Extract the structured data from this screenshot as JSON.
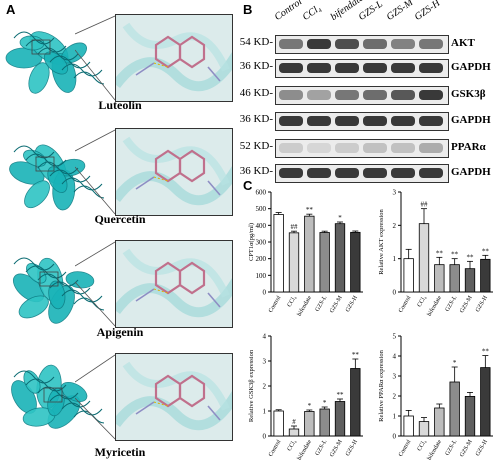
{
  "panels": {
    "a": "A",
    "b": "B",
    "c": "C"
  },
  "molecules": [
    "Luteolin",
    "Quercetin",
    "Apigenin",
    "Myricetin"
  ],
  "blot": {
    "lanes": [
      "Control",
      "CCl₄",
      "bifendate",
      "GZS-L",
      "GZS-M",
      "GZS-H"
    ],
    "rows": [
      {
        "kd": "54 KD-",
        "protein": "AKT",
        "intensity": [
          0.55,
          0.85,
          0.75,
          0.6,
          0.5,
          0.55
        ]
      },
      {
        "kd": "36 KD-",
        "protein": "GAPDH",
        "intensity": [
          0.85,
          0.85,
          0.85,
          0.85,
          0.85,
          0.85
        ]
      },
      {
        "kd": "46 KD-",
        "protein": "GSK3β",
        "intensity": [
          0.45,
          0.35,
          0.55,
          0.6,
          0.7,
          0.85
        ]
      },
      {
        "kd": "36 KD-",
        "protein": "GAPDH",
        "intensity": [
          0.85,
          0.85,
          0.85,
          0.85,
          0.85,
          0.85
        ]
      },
      {
        "kd": "52 KD-",
        "protein": "PPARα",
        "intensity": [
          0.15,
          0.1,
          0.15,
          0.2,
          0.2,
          0.3
        ]
      },
      {
        "kd": "36 KD-",
        "protein": "GAPDH",
        "intensity": [
          0.85,
          0.85,
          0.85,
          0.85,
          0.85,
          0.85
        ]
      }
    ]
  },
  "chart_data": [
    {
      "type": "bar",
      "categories": [
        "Control",
        "CCl₄",
        "bifendate",
        "GZS-L",
        "GZS-M",
        "GZS-H"
      ],
      "values": [
        465,
        355,
        455,
        357,
        410,
        358
      ],
      "errors": [
        12,
        10,
        12,
        8,
        10,
        8
      ],
      "ylabel": "CPT1α(pg/ml)",
      "ylim": [
        0,
        600
      ],
      "yticks": [
        0,
        100,
        200,
        300,
        400,
        500,
        600
      ],
      "annotations": [
        "",
        "##",
        "**",
        "",
        "*",
        ""
      ],
      "colors": [
        "#ffffff",
        "#d9d9d9",
        "#bdbdbd",
        "#8c8c8c",
        "#5e5e5e",
        "#3a3a3a"
      ]
    },
    {
      "type": "bar",
      "categories": [
        "Control",
        "CCl₄",
        "bifendate",
        "GZS-L",
        "GZS-M",
        "GZS-H"
      ],
      "values": [
        1.0,
        2.05,
        0.82,
        0.82,
        0.7,
        0.98
      ],
      "errors": [
        0.28,
        0.45,
        0.22,
        0.18,
        0.22,
        0.12
      ],
      "ylabel": "Relative AKT expression",
      "ylim": [
        0,
        3
      ],
      "yticks": [
        0,
        1,
        2,
        3
      ],
      "annotations": [
        "",
        "##",
        "**",
        "**",
        "**",
        "**"
      ],
      "colors": [
        "#ffffff",
        "#d9d9d9",
        "#bdbdbd",
        "#8c8c8c",
        "#5e5e5e",
        "#3a3a3a"
      ]
    },
    {
      "type": "bar",
      "categories": [
        "Control",
        "CCl₄",
        "bifendate",
        "GZS-L",
        "GZS-M",
        "GZS-H"
      ],
      "values": [
        1.0,
        0.28,
        0.98,
        1.08,
        1.38,
        2.7
      ],
      "errors": [
        0.05,
        0.12,
        0.06,
        0.08,
        0.1,
        0.38
      ],
      "ylabel": "Relative GSK3β expression",
      "ylim": [
        0,
        4
      ],
      "yticks": [
        0,
        1,
        2,
        3,
        4
      ],
      "annotations": [
        "",
        "#",
        "*",
        "*",
        "**",
        "**"
      ],
      "colors": [
        "#ffffff",
        "#d9d9d9",
        "#bdbdbd",
        "#8c8c8c",
        "#5e5e5e",
        "#3a3a3a"
      ]
    },
    {
      "type": "bar",
      "categories": [
        "Control",
        "CCl₄",
        "bifendate",
        "GZS-L",
        "GZS-M",
        "GZS-H"
      ],
      "values": [
        1.0,
        0.72,
        1.4,
        2.7,
        1.98,
        3.42
      ],
      "errors": [
        0.28,
        0.2,
        0.2,
        0.75,
        0.2,
        0.6
      ],
      "ylabel": "Relative PPARα expression",
      "ylim": [
        0,
        5
      ],
      "yticks": [
        0,
        1,
        2,
        3,
        4,
        5
      ],
      "annotations": [
        "",
        "",
        "",
        "*",
        "",
        "**"
      ],
      "colors": [
        "#ffffff",
        "#d9d9d9",
        "#bdbdbd",
        "#8c8c8c",
        "#5e5e5e",
        "#3a3a3a"
      ]
    }
  ]
}
